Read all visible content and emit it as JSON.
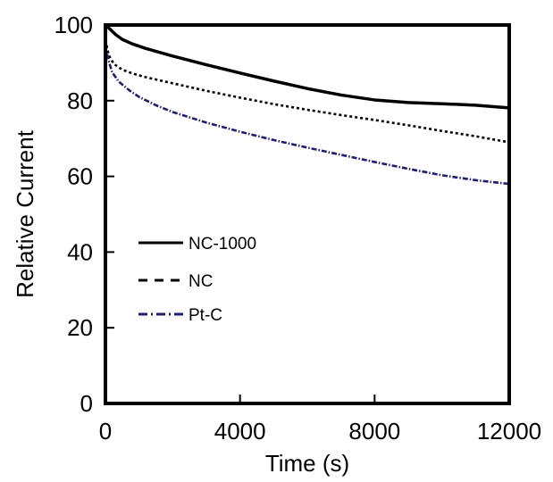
{
  "chart_data": {
    "type": "line",
    "title": "",
    "xlabel": "Time (s)",
    "ylabel": "Relative Current",
    "xlim": [
      0,
      12000
    ],
    "ylim": [
      0,
      100
    ],
    "xticks": [
      0,
      4000,
      8000,
      12000
    ],
    "yticks": [
      0,
      20,
      40,
      60,
      80,
      100
    ],
    "x_tick_labels": [
      "0",
      "4000",
      "8000",
      "12000"
    ],
    "y_tick_labels": [
      "0",
      "20",
      "40",
      "60",
      "80",
      "100"
    ],
    "grid": false,
    "legend_position": "left-middle",
    "series": [
      {
        "name": "NC-1000",
        "color": "#000000",
        "style": "solid",
        "x": [
          0,
          150,
          300,
          500,
          800,
          1200,
          2000,
          3000,
          4000,
          5000,
          6000,
          7000,
          8000,
          9000,
          10000,
          11000,
          12000
        ],
        "y": [
          100,
          98.8,
          97.5,
          96.2,
          95,
          93.8,
          91.8,
          89.5,
          87.3,
          85.2,
          83.2,
          81.5,
          80.2,
          79.5,
          79.2,
          78.8,
          78.1
        ]
      },
      {
        "name": "NC",
        "color": "#000000",
        "style": "dashed",
        "x": [
          0,
          100,
          250,
          500,
          800,
          1200,
          2000,
          3000,
          4000,
          5000,
          6000,
          7000,
          8000,
          9000,
          10000,
          11000,
          12000
        ],
        "y": [
          96,
          92,
          89.7,
          88.2,
          87.2,
          86.2,
          84.6,
          82.6,
          80.8,
          79.1,
          77.6,
          76.2,
          74.9,
          73.5,
          72,
          70.6,
          69
        ]
      },
      {
        "name": "Pt-C",
        "color": "#1f1f6e",
        "style": "dash-dot",
        "x": [
          0,
          80,
          200,
          400,
          700,
          1000,
          1500,
          2000,
          3000,
          4000,
          5000,
          6000,
          7000,
          8000,
          9000,
          10000,
          11000,
          12000
        ],
        "y": [
          95,
          91,
          87.5,
          85,
          82.8,
          81,
          78.8,
          77,
          74.2,
          71.8,
          69.6,
          67.6,
          65.7,
          63.8,
          62,
          60.3,
          59,
          58
        ]
      }
    ]
  }
}
